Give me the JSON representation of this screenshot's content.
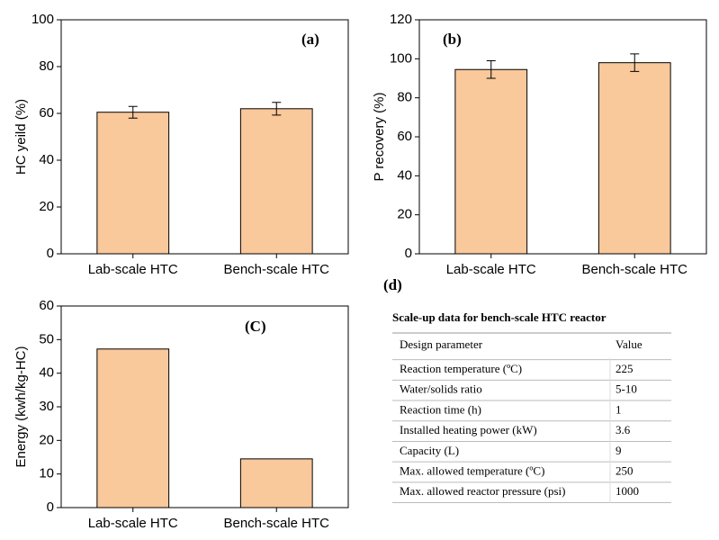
{
  "chart_data": [
    {
      "type": "bar",
      "panel_label": "(a)",
      "ylabel": "HC yeild (%)",
      "categories": [
        "Lab-scale HTC",
        "Bench-scale HTC"
      ],
      "values": [
        60.5,
        62
      ],
      "errors": [
        2.5,
        2.7
      ],
      "color": "#f9c89b",
      "ylim": [
        0,
        100
      ],
      "yticks": [
        0,
        20,
        40,
        60,
        80,
        100
      ]
    },
    {
      "type": "bar",
      "panel_label": "(b)",
      "ylabel": "P recovery (%)",
      "categories": [
        "Lab-scale HTC",
        "Bench-scale HTC"
      ],
      "values": [
        94.5,
        98
      ],
      "errors": [
        4.5,
        4.5
      ],
      "color": "#f9c89b",
      "ylim": [
        0,
        120
      ],
      "yticks": [
        0,
        20,
        40,
        60,
        80,
        100,
        120
      ]
    },
    {
      "type": "bar",
      "panel_label": "(C)",
      "ylabel": "Energy (kwh/kg-HC)",
      "categories": [
        "Lab-scale HTC",
        "Bench-scale HTC"
      ],
      "values": [
        47.2,
        14.5
      ],
      "color": "#f9c89b",
      "ylim": [
        0,
        60
      ],
      "yticks": [
        0,
        10,
        20,
        30,
        40,
        50,
        60
      ]
    }
  ],
  "table": {
    "panel_label": "(d)",
    "title": "Scale-up data for bench-scale HTC reactor",
    "columns": [
      "Design parameter",
      "Value"
    ],
    "rows": [
      [
        "Reaction temperature (ºC)",
        225
      ],
      [
        "Water/solids ratio",
        "5-10"
      ],
      [
        "Reaction time (h)",
        1
      ],
      [
        "Installed heating power (kW)",
        3.6
      ],
      [
        "Capacity (L)",
        9
      ],
      [
        "Max. allowed temperature (ºC)",
        250
      ],
      [
        "Max. allowed reactor pressure (psi)",
        1000
      ]
    ]
  }
}
